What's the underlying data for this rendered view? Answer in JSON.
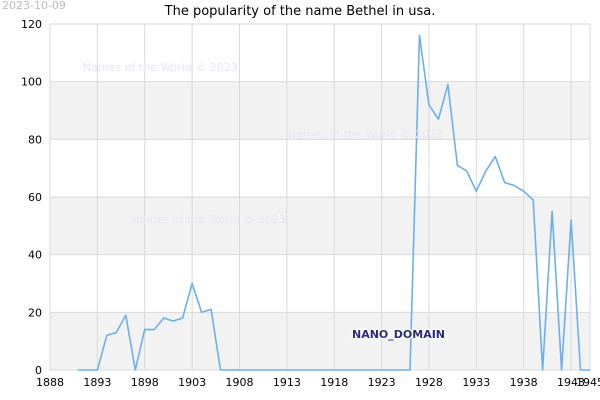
{
  "header": {
    "date_stamp": "2023-10-09",
    "title": "The popularity of the name Bethel in usa."
  },
  "watermarks": {
    "text": "Names of the World © 2023",
    "domain": "NANO_DOMAIN"
  },
  "colors": {
    "line": "#6ab0ee",
    "band": "#f2f2f2",
    "grid": "#d9d9d9"
  },
  "chart_data": {
    "type": "line",
    "title": "The popularity of the name Bethel in usa.",
    "xlabel": "",
    "ylabel": "",
    "xlim": [
      1888,
      1945
    ],
    "ylim": [
      0,
      120
    ],
    "x_ticks": [
      1888,
      1893,
      1898,
      1903,
      1908,
      1913,
      1918,
      1923,
      1928,
      1933,
      1938,
      1943,
      1945
    ],
    "y_ticks": [
      0,
      20,
      40,
      60,
      80,
      100,
      120
    ],
    "grid": true,
    "series": [
      {
        "x": [
          1891,
          1892,
          1893,
          1894,
          1895,
          1896,
          1897,
          1898,
          1899,
          1900,
          1901,
          1902,
          1903,
          1904,
          1905,
          1906,
          1907,
          1908,
          1909,
          1910,
          1911,
          1912,
          1913,
          1914,
          1915,
          1916,
          1917,
          1918,
          1919,
          1920,
          1921,
          1922,
          1923,
          1924,
          1925,
          1926,
          1927,
          1928,
          1929,
          1930,
          1931,
          1932,
          1933,
          1934,
          1935,
          1936,
          1937,
          1938,
          1939,
          1940,
          1941,
          1942,
          1943,
          1944,
          1945
        ],
        "values": [
          0,
          0,
          0,
          12,
          13,
          19,
          0,
          14,
          14,
          18,
          17,
          18,
          30,
          20,
          21,
          0,
          0,
          0,
          0,
          0,
          0,
          0,
          0,
          0,
          0,
          0,
          0,
          0,
          0,
          0,
          0,
          0,
          0,
          0,
          0,
          0,
          116,
          92,
          87,
          99,
          71,
          69,
          62,
          69,
          74,
          65,
          64,
          62,
          59,
          0,
          55,
          0,
          52,
          0,
          0
        ]
      }
    ]
  }
}
